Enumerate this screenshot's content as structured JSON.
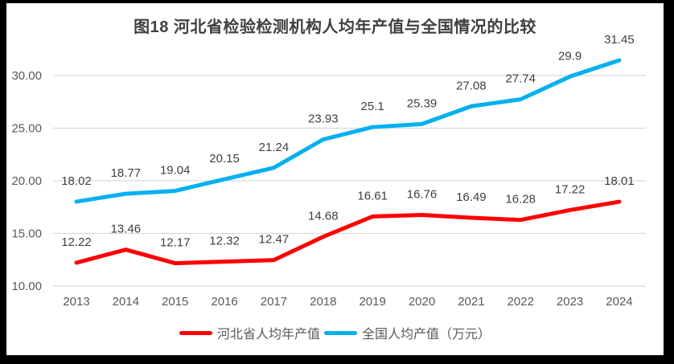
{
  "title": "图18 河北省检验检测机构人均年产值与全国情况的比较",
  "colors": {
    "hebei_line": "#FF0000",
    "national_line": "#00B0F0",
    "gridline": "#D9D9D9",
    "axis_text": "#595959",
    "data_label_text": "#404040",
    "title_text": "#404040",
    "frame": "#000000",
    "background": "#FFFFFF"
  },
  "chart_data": {
    "type": "line",
    "title": "图18 河北省检验检测机构人均年产值与全国情况的比较",
    "categories": [
      "2013",
      "2014",
      "2015",
      "2016",
      "2017",
      "2018",
      "2019",
      "2020",
      "2021",
      "2022",
      "2023",
      "2024"
    ],
    "series": [
      {
        "name": "河北省人均年产值",
        "color": "#FF0000",
        "values": [
          12.22,
          13.46,
          12.17,
          12.32,
          12.47,
          14.68,
          16.61,
          16.76,
          16.49,
          16.28,
          17.22,
          18.01
        ],
        "labels": [
          "12.22",
          "13.46",
          "12.17",
          "12.32",
          "12.47",
          "14.68",
          "16.61",
          "16.76",
          "16.49",
          "16.28",
          "17.22",
          "18.01"
        ]
      },
      {
        "name": "全国人均产值（万元）",
        "color": "#00B0F0",
        "values": [
          18.02,
          18.77,
          19.04,
          20.15,
          21.24,
          23.93,
          25.1,
          25.39,
          27.08,
          27.74,
          29.9,
          31.45
        ],
        "labels": [
          "18.02",
          "18.77",
          "19.04",
          "20.15",
          "21.24",
          "23.93",
          "25.1",
          "25.39",
          "27.08",
          "27.74",
          "29.9",
          "31.45"
        ]
      }
    ],
    "xlabel": "",
    "ylabel": "",
    "y_axis": {
      "tick_labels": [
        "10.00",
        "15.00",
        "20.00",
        "25.00",
        "30.00"
      ],
      "tick_values": [
        10,
        15,
        20,
        25,
        30
      ],
      "min": 10,
      "max": 32.5
    },
    "grid": true,
    "data_labels": true,
    "legend_position": "bottom"
  }
}
